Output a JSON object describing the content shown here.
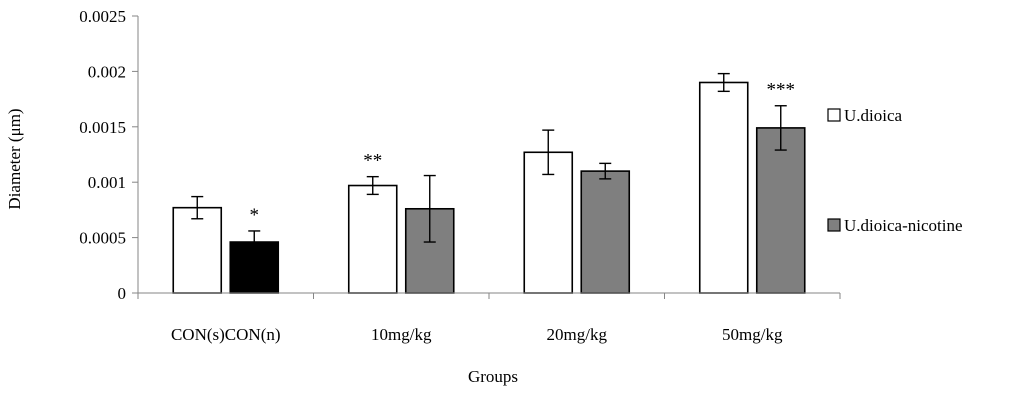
{
  "chart_data": {
    "type": "bar",
    "xlabel": "Groups",
    "ylabel": "Diameter (μm)",
    "ylim": [
      0,
      0.0025
    ],
    "yticks": [
      "0",
      "0.0005",
      "0.001",
      "0.0015",
      "0.002",
      "0.0025"
    ],
    "grid": false,
    "legend_position": "right",
    "categories": [
      "CON(s)CON(n)",
      "10mg/kg",
      "20mg/kg",
      "50mg/kg"
    ],
    "series": [
      {
        "name": "U.dioica",
        "color": "#ffffff",
        "values": [
          0.00077,
          0.00097,
          0.00127,
          0.0019
        ],
        "errors": [
          0.0001,
          8e-05,
          0.0002,
          8e-05
        ]
      },
      {
        "name": "U.dioica-nicotine",
        "color": "#7f7f7f",
        "values": [
          0.00046,
          0.00076,
          0.0011,
          0.00149
        ],
        "errors": [
          0.0001,
          0.0003,
          7e-05,
          0.0002
        ]
      }
    ],
    "special_bar": {
      "series": 1,
      "category": 0,
      "color": "#000000"
    },
    "annotations": [
      {
        "text": "*",
        "series": 1,
        "category": 0
      },
      {
        "text": "**",
        "series": 0,
        "category": 1
      },
      {
        "text": "***",
        "series": 1,
        "category": 3
      }
    ]
  }
}
